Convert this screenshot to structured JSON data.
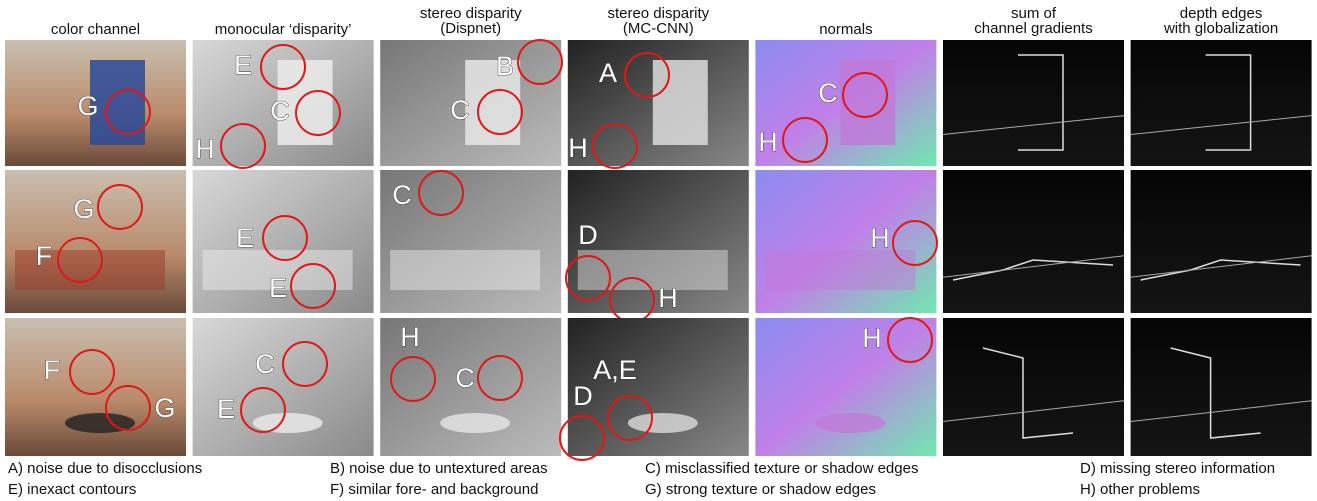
{
  "headers": [
    [
      "color channel"
    ],
    [
      "monocular ‘disparity’"
    ],
    [
      "stereo disparity",
      "(Dispnet)"
    ],
    [
      "stereo disparity",
      "(MC-CNN)"
    ],
    [
      "normals"
    ],
    [
      "sum of",
      "channel gradients"
    ],
    [
      "depth edges",
      "with globalization"
    ]
  ],
  "panels": [
    [
      [
        "G"
      ],
      [
        "E",
        "C",
        "H"
      ],
      [
        "B",
        "C"
      ],
      [
        "A",
        "H"
      ],
      [
        "C",
        "H"
      ],
      [],
      []
    ],
    [
      [
        "G",
        "F"
      ],
      [
        "E",
        "E"
      ],
      [
        "C"
      ],
      [
        "D",
        "H"
      ],
      [
        "H"
      ],
      [],
      []
    ],
    [
      [
        "F",
        "G"
      ],
      [
        "C",
        "E"
      ],
      [
        "H",
        "C"
      ],
      [
        "A,E",
        "D"
      ],
      [
        "H"
      ],
      [],
      []
    ]
  ],
  "legend": [
    [
      "A) noise due to disocclusions",
      "B) noise due to untextured areas",
      "C) misclassified texture or shadow edges",
      "D) missing stereo information"
    ],
    [
      "E) inexact contours",
      "F) similar fore- and background",
      "G) strong texture or shadow edges",
      "H) other problems"
    ]
  ]
}
